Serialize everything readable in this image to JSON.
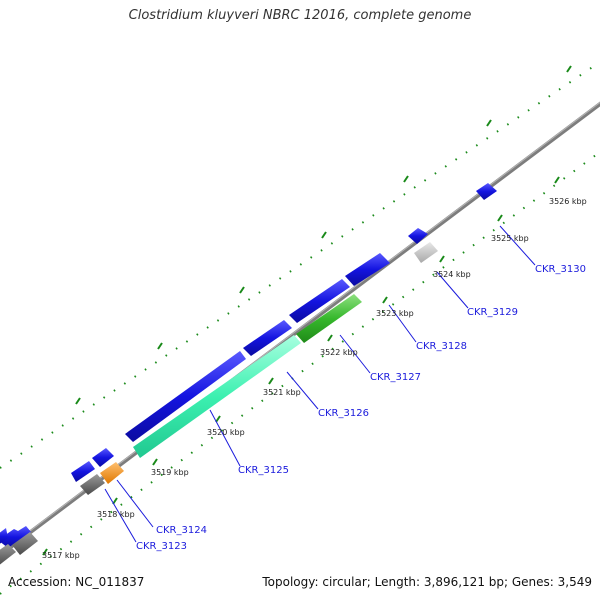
{
  "title": "Clostridium kluyveri NBRC 12016, complete genome",
  "footer": {
    "accession": "Accession: NC_011837",
    "topology": "Topology: circular; Length: 3,896,121 bp; Genes: 3,549"
  },
  "kbp_labels": [
    "3517 kbp",
    "3518 kbp",
    "3519 kbp",
    "3520 kbp",
    "3521 kbp",
    "3522 kbp",
    "3523 kbp",
    "3524 kbp",
    "3525 kbp",
    "3526 kbp"
  ],
  "gene_labels": [
    "CKR_3123",
    "CKR_3124",
    "CKR_3125",
    "CKR_3126",
    "CKR_3127",
    "CKR_3128",
    "CKR_3129",
    "CKR_3130"
  ],
  "colors": {
    "backbone": "#7a7a7a",
    "tick": "#1a8a1a",
    "blue": "#1414e0",
    "gray": "#666666",
    "orange": "#f08a10",
    "mint": "#3cf0b0",
    "green": "#36b82c",
    "lightgray": "#bdbdbd",
    "label": "#1b1bdc"
  }
}
